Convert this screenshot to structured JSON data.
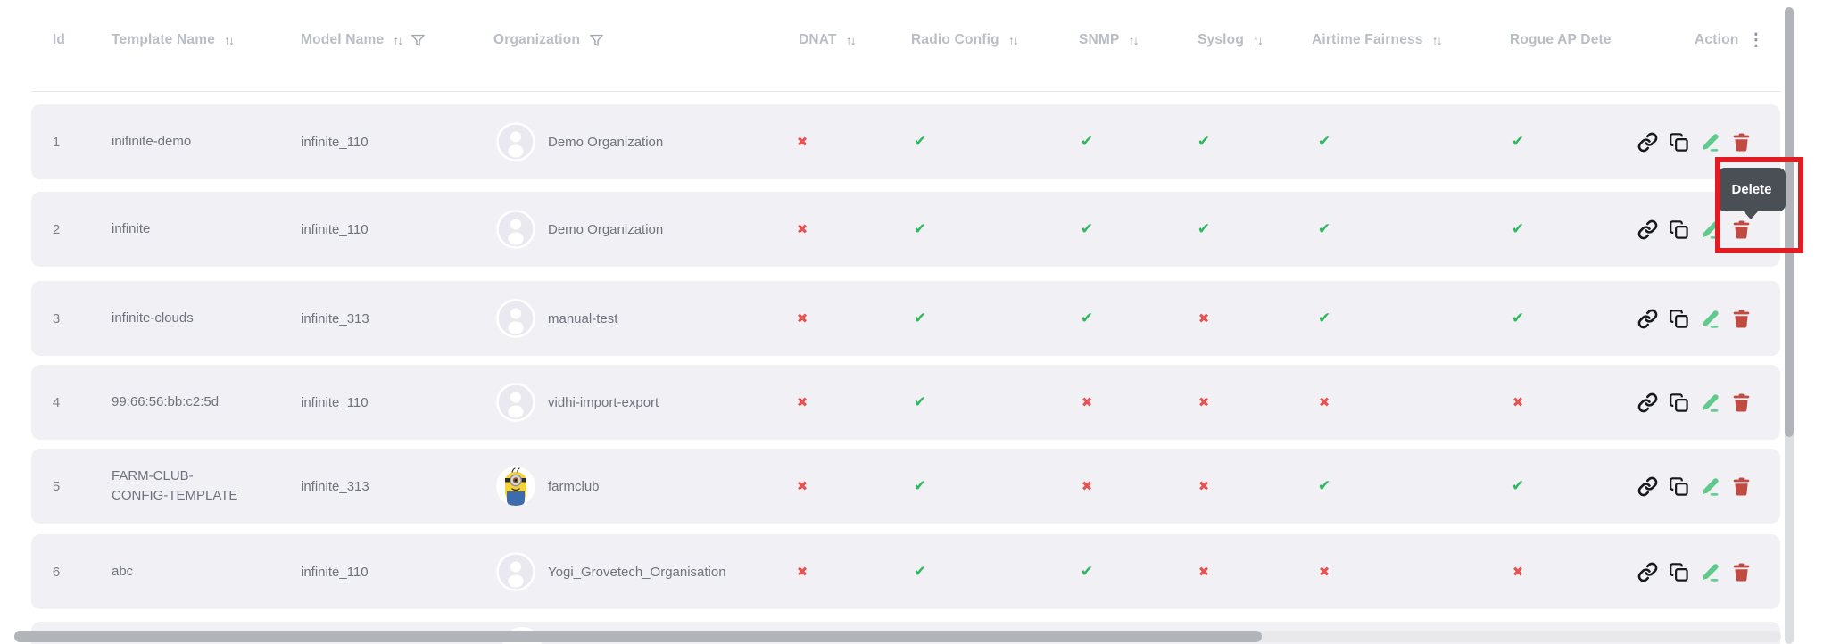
{
  "table": {
    "columns": [
      {
        "key": "id",
        "label": "Id",
        "sortable": false,
        "filterable": false
      },
      {
        "key": "template_name",
        "label": "Template Name",
        "sortable": true,
        "filterable": false
      },
      {
        "key": "model_name",
        "label": "Model Name",
        "sortable": true,
        "filterable": true
      },
      {
        "key": "organization",
        "label": "Organization",
        "sortable": false,
        "filterable": true
      },
      {
        "key": "dnat",
        "label": "DNAT",
        "sortable": true,
        "filterable": false
      },
      {
        "key": "radio_config",
        "label": "Radio Config",
        "sortable": true,
        "filterable": false
      },
      {
        "key": "snmp",
        "label": "SNMP",
        "sortable": true,
        "filterable": false
      },
      {
        "key": "syslog",
        "label": "Syslog",
        "sortable": true,
        "filterable": false
      },
      {
        "key": "airtime_fairness",
        "label": "Airtime Fairness",
        "sortable": true,
        "filterable": false
      },
      {
        "key": "rogue_ap",
        "label": "Rogue AP Dete",
        "sortable": false,
        "filterable": false,
        "truncated": true
      },
      {
        "key": "action",
        "label": "Action",
        "menu": true
      }
    ],
    "rows": [
      {
        "id": "1",
        "template_name": "inifinite-demo",
        "model_name": "infinite_110",
        "organization": "Demo Organization",
        "avatar": "person",
        "dnat": false,
        "radio_config": true,
        "snmp": true,
        "syslog": true,
        "airtime_fairness": true,
        "rogue_ap": true
      },
      {
        "id": "2",
        "template_name": "infinite",
        "model_name": "infinite_110",
        "organization": "Demo Organization",
        "avatar": "person",
        "dnat": false,
        "radio_config": true,
        "snmp": true,
        "syslog": true,
        "airtime_fairness": true,
        "rogue_ap": true
      },
      {
        "id": "3",
        "template_name": "infinite-clouds",
        "model_name": "infinite_313",
        "organization": "manual-test",
        "avatar": "person",
        "dnat": false,
        "radio_config": true,
        "snmp": true,
        "syslog": false,
        "airtime_fairness": true,
        "rogue_ap": true
      },
      {
        "id": "4",
        "template_name": "99:66:56:bb:c2:5d",
        "model_name": "infinite_110",
        "organization": "vidhi-import-export",
        "avatar": "person",
        "dnat": false,
        "radio_config": true,
        "snmp": false,
        "syslog": false,
        "airtime_fairness": false,
        "rogue_ap": false
      },
      {
        "id": "5",
        "template_name": "FARM-CLUB-CONFIG-TEMPLATE",
        "model_name": "infinite_313",
        "organization": "farmclub",
        "avatar": "minion",
        "dnat": false,
        "radio_config": true,
        "snmp": false,
        "syslog": false,
        "airtime_fairness": true,
        "rogue_ap": true
      },
      {
        "id": "6",
        "template_name": "abc",
        "model_name": "infinite_110",
        "organization": "Yogi_Grovetech_Organisation",
        "avatar": "person",
        "dnat": false,
        "radio_config": true,
        "snmp": true,
        "syslog": false,
        "airtime_fairness": false,
        "rogue_ap": false
      }
    ],
    "row_actions": [
      "link",
      "copy",
      "edit",
      "delete"
    ]
  },
  "tooltip": {
    "label": "Delete"
  },
  "icons": {
    "sort_glyph": "↑↓",
    "more_glyph": "⋮",
    "check_glyph": "✔",
    "cross_glyph": "✖"
  },
  "colors": {
    "check_green": "#2eb85c",
    "cross_red": "#e55353",
    "edit_green": "#5ecb8c",
    "delete_red": "#c14a42",
    "tooltip_bg": "#4a4e55",
    "annotation_red": "#e31b23",
    "row_bg": "#f1f1f5",
    "header_text": "#b9bdc6"
  }
}
